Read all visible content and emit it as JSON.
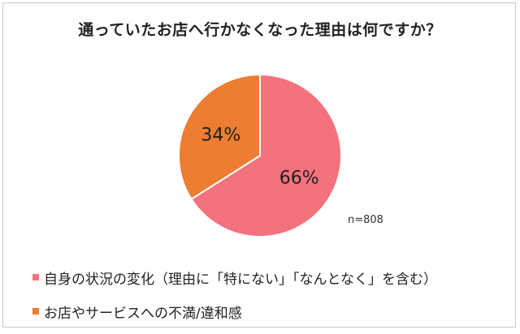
{
  "chart_data": {
    "type": "pie",
    "title": "通っていたお店へ行かなくなった理由は何ですか？",
    "slices": [
      {
        "label": "自身の状況の変化（理由に「特にない」「なんとなく」を含む）",
        "value": 66,
        "display": "66%",
        "color": "#f4727e"
      },
      {
        "label": "お店やサービスへの不満/違和感",
        "value": 34,
        "display": "34%",
        "color": "#ed7d31"
      }
    ],
    "note": "n=808",
    "legend_position": "bottom"
  }
}
